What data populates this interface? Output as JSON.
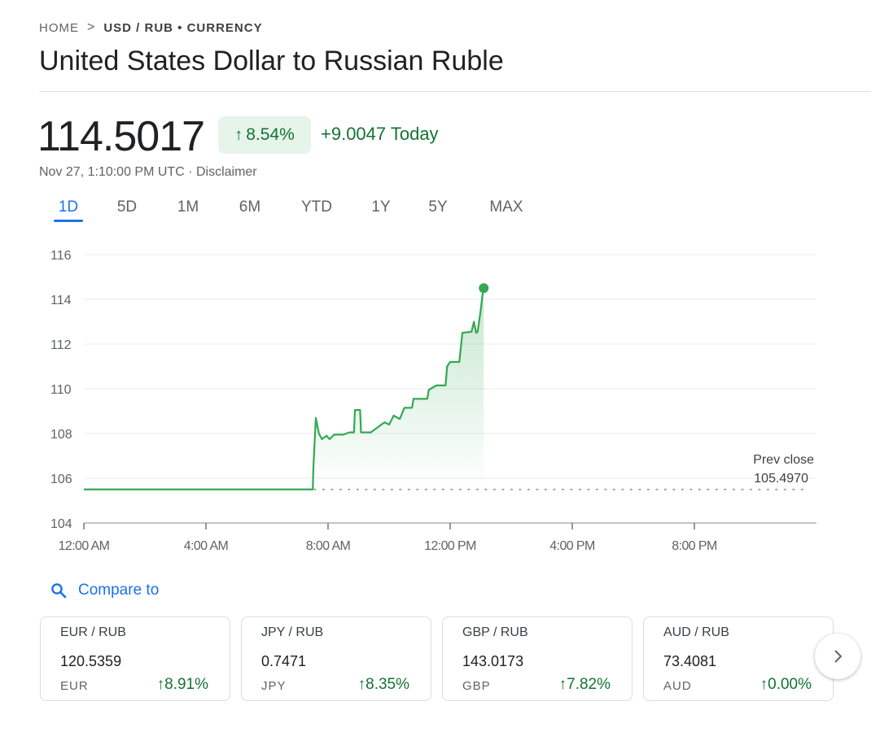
{
  "breadcrumb": {
    "home": "HOME",
    "separator": ">",
    "current": "USD / RUB • CURRENCY"
  },
  "title": "United States Dollar to Russian Ruble",
  "quote": {
    "price": "114.5017",
    "change_pct": "8.54%",
    "change_abs": "+9.0047 Today",
    "timestamp": "Nov 27, 1:10:00 PM UTC · Disclaimer"
  },
  "range_tabs": [
    {
      "label": "1D",
      "active": true
    },
    {
      "label": "5D",
      "active": false
    },
    {
      "label": "1M",
      "active": false
    },
    {
      "label": "6M",
      "active": false
    },
    {
      "label": "YTD",
      "active": false
    },
    {
      "label": "1Y",
      "active": false
    },
    {
      "label": "5Y",
      "active": false
    },
    {
      "label": "MAX",
      "active": false
    }
  ],
  "chart_data": {
    "type": "line",
    "x_unit": "hours since 12:00 AM",
    "ylim": [
      104,
      116
    ],
    "xlim": [
      0,
      24
    ],
    "y_ticks": [
      104,
      106,
      108,
      110,
      112,
      114,
      116
    ],
    "x_ticks": [
      {
        "label": "12:00 AM",
        "value": 0
      },
      {
        "label": "4:00 AM",
        "value": 4
      },
      {
        "label": "8:00 AM",
        "value": 8
      },
      {
        "label": "12:00 PM",
        "value": 12
      },
      {
        "label": "4:00 PM",
        "value": 16
      },
      {
        "label": "8:00 PM",
        "value": 20
      }
    ],
    "grid": true,
    "prev_close": {
      "label": "Prev close",
      "value": 105.497,
      "value_text": "105.4970"
    },
    "series": [
      {
        "color": "#34a853",
        "points": [
          [
            0,
            105.5
          ],
          [
            7.5,
            105.5
          ],
          [
            7.52,
            106.5
          ],
          [
            7.6,
            108.7
          ],
          [
            7.7,
            108.0
          ],
          [
            7.8,
            107.75
          ],
          [
            7.95,
            107.9
          ],
          [
            8.05,
            107.75
          ],
          [
            8.2,
            107.95
          ],
          [
            8.5,
            107.95
          ],
          [
            8.7,
            108.05
          ],
          [
            8.85,
            108.05
          ],
          [
            8.88,
            109.05
          ],
          [
            9.05,
            109.05
          ],
          [
            9.08,
            108.05
          ],
          [
            9.4,
            108.05
          ],
          [
            9.6,
            108.25
          ],
          [
            9.85,
            108.5
          ],
          [
            10.0,
            108.4
          ],
          [
            10.15,
            108.8
          ],
          [
            10.35,
            108.65
          ],
          [
            10.5,
            109.15
          ],
          [
            10.75,
            109.15
          ],
          [
            10.8,
            109.55
          ],
          [
            11.25,
            109.55
          ],
          [
            11.3,
            109.95
          ],
          [
            11.55,
            110.15
          ],
          [
            11.85,
            110.15
          ],
          [
            11.9,
            111.0
          ],
          [
            12.0,
            111.2
          ],
          [
            12.3,
            111.2
          ],
          [
            12.4,
            112.5
          ],
          [
            12.7,
            112.55
          ],
          [
            12.78,
            113.0
          ],
          [
            12.85,
            112.5
          ],
          [
            12.9,
            112.55
          ],
          [
            13.0,
            113.5
          ],
          [
            13.05,
            114.1
          ],
          [
            13.1,
            114.5017
          ]
        ]
      }
    ]
  },
  "compare": {
    "label": "Compare to"
  },
  "compare_cards": [
    {
      "pair": "EUR / RUB",
      "rate": "120.5359",
      "code": "EUR",
      "change": "8.91%"
    },
    {
      "pair": "JPY / RUB",
      "rate": "0.7471",
      "code": "JPY",
      "change": "8.35%"
    },
    {
      "pair": "GBP / RUB",
      "rate": "143.0173",
      "code": "GBP",
      "change": "7.82%"
    },
    {
      "pair": "AUD / RUB",
      "rate": "73.4081",
      "code": "AUD",
      "change": "0.00%"
    }
  ],
  "icons": {
    "up_arrow": "arrow-up-icon",
    "search": "search-icon",
    "next": "chevron-right-icon"
  },
  "colors": {
    "positive": "#137333",
    "positive_bg": "#e6f4ea",
    "line": "#34a853",
    "accent": "#1a73e8"
  }
}
